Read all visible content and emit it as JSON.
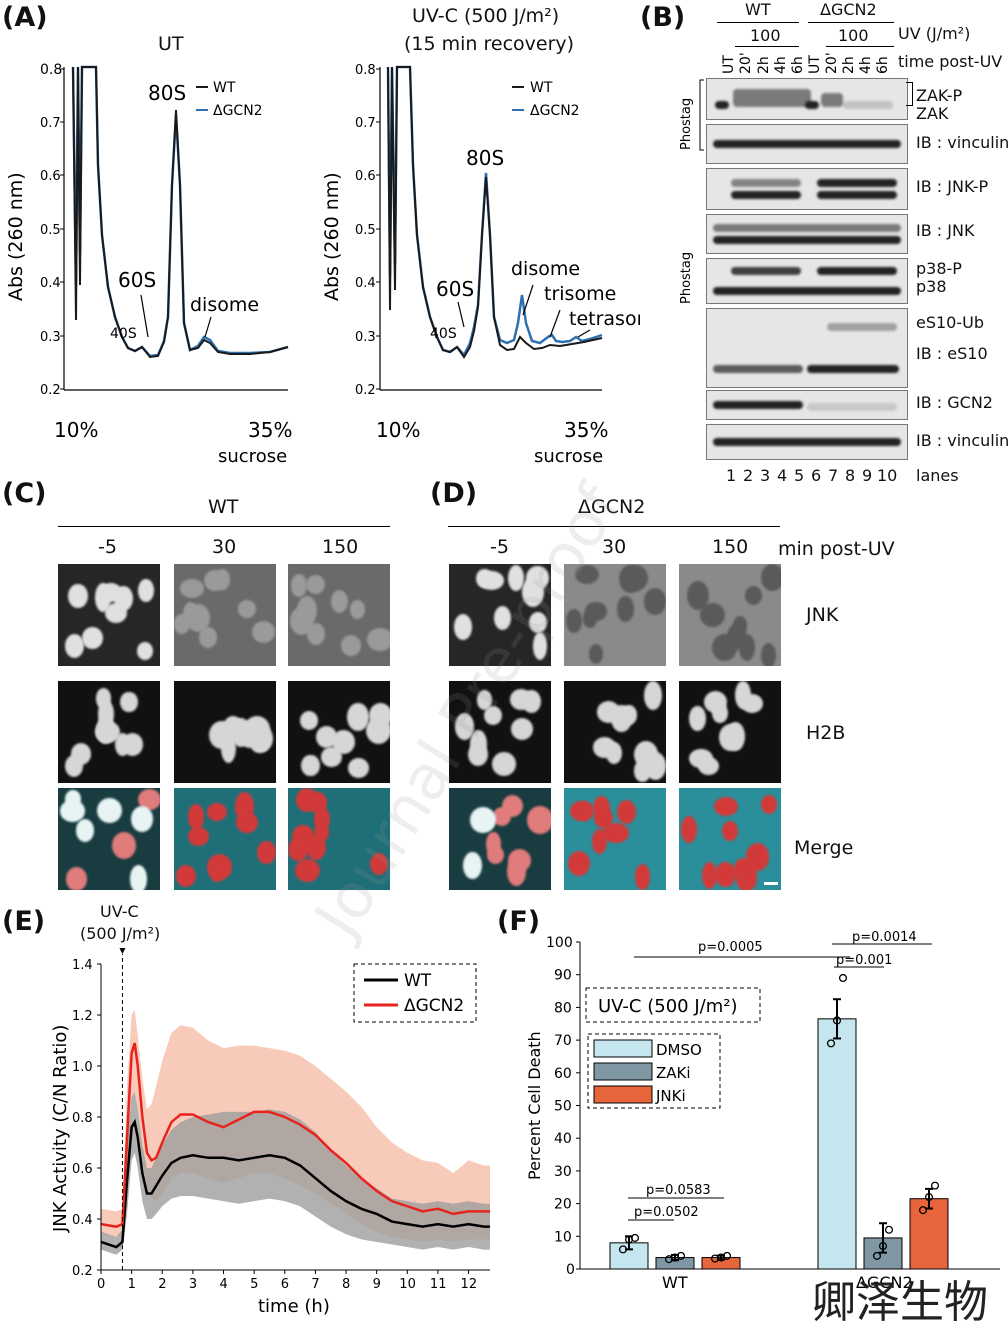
{
  "panels": {
    "A": "(A)",
    "B": "(B)",
    "C": "(C)",
    "D": "(D)",
    "E": "(E)",
    "F": "(F)"
  },
  "A": {
    "left": {
      "title": "UT",
      "y_label": "Abs (260 nm)",
      "y_ticks": [
        "0.8",
        "0.7",
        "0.6",
        "0.5",
        "0.4",
        "0.3",
        "0.2"
      ],
      "x_left": "10%",
      "x_right": "35%",
      "x_sub": "sucrose",
      "legend": [
        "WT",
        "ΔGCN2"
      ],
      "annotations": [
        "80S",
        "60S",
        "40S",
        "disome"
      ]
    },
    "right": {
      "title_line1": "UV-C (500 J/m²)",
      "title_line2": "(15 min recovery)",
      "y_label": "Abs (260 nm)",
      "y_ticks": [
        "0.8",
        "0.7",
        "0.6",
        "0.5",
        "0.4",
        "0.3",
        "0.2"
      ],
      "x_left": "10%",
      "x_right": "35%",
      "x_sub": "sucrose",
      "legend": [
        "WT",
        "ΔGCN2"
      ],
      "annotations": [
        "80S",
        "60S",
        "40S",
        "disome",
        "trisome",
        "tetrasome"
      ]
    },
    "colors": {
      "wt": "#1a1a1a",
      "gcn2": "#2e6fb0"
    }
  },
  "B": {
    "group_wt": "WT",
    "group_gcn2": "ΔGCN2",
    "dose": "100",
    "uv_label": "UV (J/m²)",
    "time_label": "time post-UV",
    "lane_tops": [
      "UT",
      "20'",
      "2h",
      "4h",
      "6h",
      "UT",
      "20'",
      "2h",
      "4h",
      "6h"
    ],
    "lanes": [
      "1",
      "2",
      "3",
      "4",
      "5",
      "6",
      "7",
      "8",
      "9",
      "10"
    ],
    "lanes_label": "lanes",
    "phostag": "Phostag",
    "labels": [
      "ZAK-P",
      "ZAK",
      "IB : vinculin",
      "IB : JNK-P",
      "IB : JNK",
      "p38-P",
      "p38",
      "eS10-Ub",
      "IB : eS10",
      "IB : GCN2",
      "IB : vinculin"
    ]
  },
  "C": {
    "title": "WT",
    "times": [
      "-5",
      "30",
      "150"
    ]
  },
  "D": {
    "title": "ΔGCN2",
    "times": [
      "-5",
      "30",
      "150"
    ],
    "time_unit": "min post-UV"
  },
  "rows": [
    "JNK",
    "H2B",
    "Merge"
  ],
  "E": {
    "uv_line1": "UV-C",
    "uv_line2": "(500 J/m²)",
    "y_label": "JNK Activity (C/N Ratio)",
    "x_label": "time (h)",
    "legend": [
      "WT",
      "ΔGCN2"
    ],
    "colors": {
      "wt": "#000000",
      "gcn2": "#e8231e",
      "wt_band": "#9e9e9e",
      "gcn2_band": "#f6b8a3"
    }
  },
  "F": {
    "box": "UV-C (500 J/m²)",
    "y_label": "Percent Cell Death",
    "legend": [
      "DMSO",
      "ZAKi",
      "JNKi"
    ],
    "pvals": [
      "p=0.0005",
      "p=0.0014",
      "p=0.001",
      "p=0.0583",
      "p=0.0502"
    ],
    "colors": {
      "DMSO": "#c5e6ef",
      "ZAKi": "#7f97a3",
      "JNKi": "#e8643a"
    }
  },
  "watermark": "Journal Pre-proof",
  "logo": "卿泽生物",
  "chart_data": [
    {
      "type": "line",
      "panel": "E",
      "title": "",
      "xlabel": "time (h)",
      "ylabel": "JNK Activity (C/N Ratio)",
      "xlim": [
        0,
        12.7
      ],
      "ylim": [
        0.2,
        1.4
      ],
      "x_ticks": [
        0,
        1,
        2,
        3,
        4,
        5,
        6,
        7,
        8,
        9,
        10,
        11,
        12
      ],
      "y_ticks": [
        0.2,
        0.4,
        0.6,
        0.8,
        1.0,
        1.2,
        1.4
      ],
      "uv_time": 0.7,
      "x": [
        0,
        0.5,
        0.7,
        0.85,
        1.0,
        1.1,
        1.2,
        1.35,
        1.5,
        1.65,
        1.8,
        2.0,
        2.3,
        2.6,
        3.0,
        3.5,
        4.0,
        4.5,
        5.0,
        5.5,
        6.0,
        6.5,
        7.0,
        7.5,
        8.0,
        8.5,
        9.0,
        9.5,
        10.0,
        10.5,
        11.0,
        11.5,
        12.0,
        12.5,
        12.7
      ],
      "series": [
        {
          "name": "WT",
          "values": [
            0.31,
            0.29,
            0.31,
            0.55,
            0.76,
            0.78,
            0.72,
            0.58,
            0.5,
            0.5,
            0.53,
            0.57,
            0.62,
            0.64,
            0.65,
            0.64,
            0.64,
            0.63,
            0.64,
            0.65,
            0.64,
            0.61,
            0.56,
            0.51,
            0.47,
            0.44,
            0.42,
            0.39,
            0.38,
            0.37,
            0.38,
            0.37,
            0.38,
            0.37,
            0.37
          ],
          "upper": [
            0.35,
            0.33,
            0.36,
            0.7,
            0.88,
            0.9,
            0.83,
            0.69,
            0.6,
            0.6,
            0.64,
            0.69,
            0.75,
            0.78,
            0.8,
            0.81,
            0.82,
            0.82,
            0.82,
            0.83,
            0.82,
            0.79,
            0.74,
            0.67,
            0.61,
            0.56,
            0.52,
            0.48,
            0.47,
            0.46,
            0.47,
            0.46,
            0.47,
            0.46,
            0.46
          ],
          "lower": [
            0.28,
            0.26,
            0.28,
            0.42,
            0.63,
            0.66,
            0.6,
            0.47,
            0.4,
            0.4,
            0.42,
            0.45,
            0.48,
            0.49,
            0.49,
            0.48,
            0.47,
            0.46,
            0.47,
            0.48,
            0.47,
            0.45,
            0.41,
            0.37,
            0.34,
            0.32,
            0.31,
            0.3,
            0.29,
            0.28,
            0.29,
            0.28,
            0.29,
            0.28,
            0.28
          ]
        },
        {
          "name": "ΔGCN2",
          "values": [
            0.38,
            0.37,
            0.38,
            0.72,
            1.05,
            1.09,
            1.0,
            0.8,
            0.66,
            0.63,
            0.64,
            0.7,
            0.78,
            0.81,
            0.81,
            0.78,
            0.76,
            0.79,
            0.82,
            0.82,
            0.8,
            0.77,
            0.73,
            0.67,
            0.62,
            0.56,
            0.51,
            0.47,
            0.45,
            0.43,
            0.44,
            0.42,
            0.43,
            0.43,
            0.43
          ],
          "upper": [
            0.44,
            0.43,
            0.44,
            0.92,
            1.2,
            1.22,
            1.12,
            0.95,
            0.83,
            0.85,
            0.92,
            1.02,
            1.13,
            1.16,
            1.15,
            1.1,
            1.07,
            1.08,
            1.08,
            1.07,
            1.06,
            1.04,
            1.0,
            0.95,
            0.9,
            0.84,
            0.76,
            0.7,
            0.66,
            0.63,
            0.62,
            0.58,
            0.63,
            0.61,
            0.61
          ],
          "lower": [
            0.34,
            0.33,
            0.34,
            0.55,
            0.86,
            0.9,
            0.82,
            0.64,
            0.52,
            0.48,
            0.47,
            0.5,
            0.56,
            0.58,
            0.58,
            0.56,
            0.54,
            0.56,
            0.58,
            0.58,
            0.56,
            0.53,
            0.5,
            0.46,
            0.42,
            0.38,
            0.35,
            0.33,
            0.32,
            0.31,
            0.32,
            0.31,
            0.32,
            0.32,
            0.32
          ]
        }
      ]
    },
    {
      "type": "bar",
      "panel": "F",
      "title": "",
      "ylabel": "Percent Cell Death",
      "ylim": [
        0,
        100
      ],
      "y_ticks": [
        0,
        10,
        20,
        30,
        40,
        50,
        60,
        70,
        80,
        90,
        100
      ],
      "categories": [
        "WT",
        "ΔGCN2"
      ],
      "series": [
        {
          "name": "DMSO",
          "values": [
            8,
            76.5
          ],
          "errors": [
            2,
            6
          ],
          "points": [
            [
              6,
              9,
              9.5
            ],
            [
              69,
              76,
              89
            ]
          ]
        },
        {
          "name": "ZAKi",
          "values": [
            3.5,
            9.5
          ],
          "errors": [
            0.8,
            4.5
          ],
          "points": [
            [
              3,
              3.5,
              4
            ],
            [
              4,
              7,
              12
            ]
          ]
        },
        {
          "name": "JNKi",
          "values": [
            3.5,
            21.5
          ],
          "errors": [
            0.6,
            3
          ],
          "points": [
            [
              3.2,
              3.5,
              4
            ],
            [
              18,
              22,
              25.5
            ]
          ]
        }
      ]
    }
  ]
}
